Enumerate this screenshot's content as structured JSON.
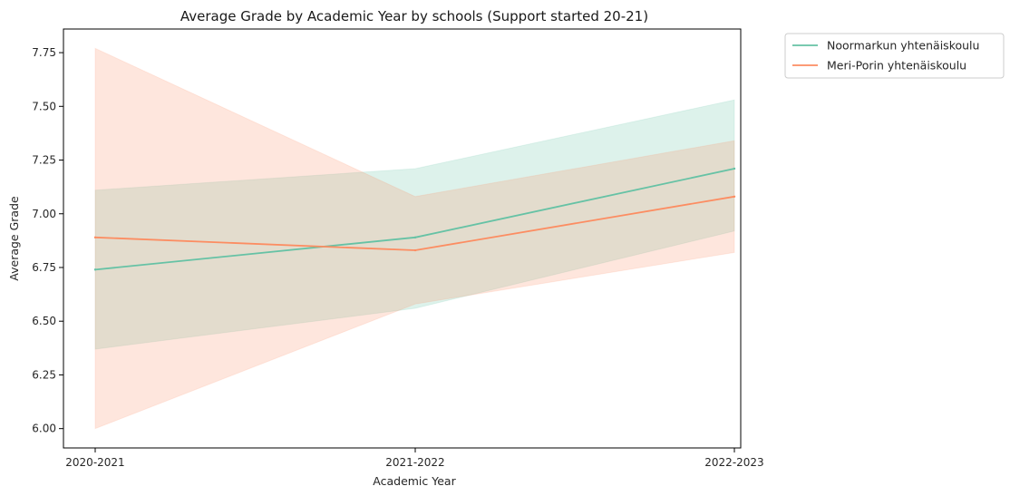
{
  "chart_data": {
    "type": "line",
    "title": "Average Grade by Academic Year by schools (Support started 20-21)",
    "xlabel": "Academic Year",
    "ylabel": "Average Grade",
    "categories": [
      "2020-2021",
      "2021-2022",
      "2022-2023"
    ],
    "ylim": [
      5.91,
      7.86
    ],
    "yticks": [
      "6.00",
      "6.25",
      "6.50",
      "6.75",
      "7.00",
      "7.25",
      "7.50",
      "7.75"
    ],
    "grid": false,
    "legend_position": "outside top-right",
    "series": [
      {
        "name": "Noormarkun yhtenäiskoulu",
        "color": "#66c2a5",
        "values": [
          6.74,
          6.89,
          7.21
        ],
        "ci_low": [
          6.37,
          6.56,
          6.92
        ],
        "ci_high": [
          7.11,
          7.21,
          7.53
        ]
      },
      {
        "name": "Meri-Porin yhtenäiskoulu",
        "color": "#fc8d62",
        "values": [
          6.89,
          6.83,
          7.08
        ],
        "ci_low": [
          6.0,
          6.58,
          6.82
        ],
        "ci_high": [
          7.77,
          7.08,
          7.34
        ]
      }
    ]
  }
}
